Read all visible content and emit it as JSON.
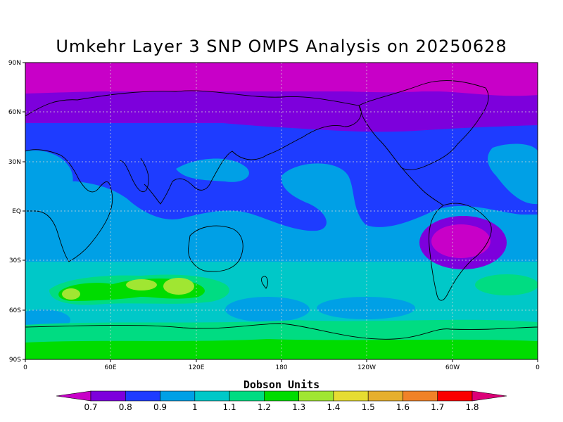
{
  "title": "Umkehr Layer 3 SNP OMPS Analysis on 20250628",
  "axes": {
    "y_ticks": [
      "90N",
      "60N",
      "30N",
      "EQ",
      "30S",
      "60S",
      "90S"
    ],
    "x_ticks": [
      "0",
      "60E",
      "120E",
      "180",
      "120W",
      "60W",
      "0"
    ]
  },
  "colorbar": {
    "title": "Dobson Units",
    "levels": [
      "0.7",
      "0.8",
      "0.9",
      "1",
      "1.1",
      "1.2",
      "1.3",
      "1.4",
      "1.5",
      "1.6",
      "1.7",
      "1.8"
    ],
    "colors": [
      "#c800c8",
      "#7d00dc",
      "#1e3cff",
      "#00a0e6",
      "#00c8c8",
      "#00dc82",
      "#00dc00",
      "#a0e632",
      "#e6dc32",
      "#e6af2d",
      "#f08228",
      "#fa0000",
      "#dc0078"
    ]
  },
  "chart_data": {
    "type": "heatmap",
    "title": "Umkehr Layer 3 SNP OMPS Analysis on 20250628",
    "units": "Dobson Units",
    "lon_range": [
      0,
      360
    ],
    "lat_range": [
      -90,
      90
    ],
    "contour_levels": [
      0.7,
      0.8,
      0.9,
      1.0,
      1.1,
      1.2,
      1.3,
      1.4,
      1.5,
      1.6,
      1.7,
      1.8
    ],
    "grid": true,
    "legend_placement": "bottom"
  }
}
